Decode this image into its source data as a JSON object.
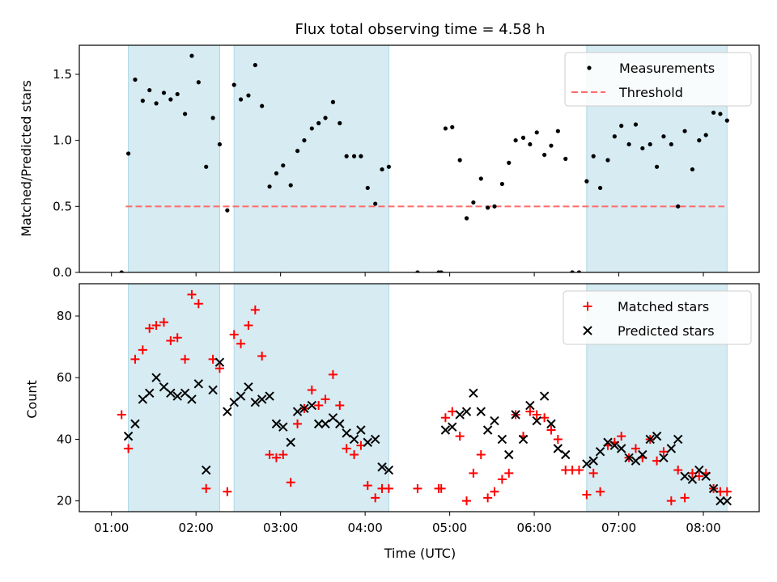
{
  "chart_data": [
    {
      "type": "scatter",
      "title": "Flux total observing time = 4.58 h",
      "xlabel": "",
      "ylabel": "Matched/Predicted stars",
      "ylim": [
        0,
        1.72
      ],
      "xlim": [
        0.62,
        8.66
      ],
      "yticks": [
        0.0,
        0.5,
        1.0,
        1.5
      ],
      "yticklabels": [
        "0.0",
        "0.5",
        "1.0",
        "1.5"
      ],
      "xtick_labels_shown": false,
      "legend": {
        "placement": "top-right",
        "entries": [
          "Measurements",
          "Threshold"
        ]
      },
      "threshold": {
        "name": "Threshold",
        "value": 0.5,
        "x": [
          1.17,
          8.25
        ],
        "color": "#ff6b6b",
        "style": "dashed"
      },
      "series": [
        {
          "name": "Measurements",
          "marker": "dot",
          "color": "#000000",
          "x": [
            1.12,
            1.2,
            1.28,
            1.37,
            1.45,
            1.53,
            1.62,
            1.7,
            1.78,
            1.87,
            1.95,
            2.03,
            2.12,
            2.2,
            2.28,
            2.37,
            2.45,
            2.53,
            2.62,
            2.7,
            2.78,
            2.87,
            2.95,
            3.03,
            3.12,
            3.2,
            3.28,
            3.37,
            3.45,
            3.53,
            3.62,
            3.7,
            3.78,
            3.87,
            3.95,
            4.03,
            4.12,
            4.2,
            4.28,
            4.62,
            4.87,
            4.9,
            4.95,
            5.03,
            5.12,
            5.2,
            5.28,
            5.37,
            5.45,
            5.53,
            5.62,
            5.7,
            5.78,
            5.87,
            5.95,
            6.03,
            6.12,
            6.2,
            6.28,
            6.37,
            6.45,
            6.53,
            6.62,
            6.7,
            6.78,
            6.87,
            6.95,
            7.03,
            7.12,
            7.2,
            7.28,
            7.37,
            7.45,
            7.53,
            7.62,
            7.7,
            7.78,
            7.87,
            7.95,
            8.03,
            8.12,
            8.2,
            8.28
          ],
          "y": [
            0.0,
            0.9,
            1.46,
            1.3,
            1.38,
            1.28,
            1.36,
            1.31,
            1.35,
            1.2,
            1.64,
            1.44,
            0.8,
            1.17,
            0.97,
            0.47,
            1.42,
            1.31,
            1.34,
            1.57,
            1.26,
            0.65,
            0.75,
            0.81,
            0.66,
            0.92,
            1.0,
            1.09,
            1.13,
            1.17,
            1.29,
            1.13,
            0.88,
            0.88,
            0.88,
            0.64,
            0.52,
            0.78,
            0.8,
            0.0,
            0.0,
            0.0,
            1.09,
            1.1,
            0.85,
            0.41,
            0.53,
            0.71,
            0.49,
            0.5,
            0.67,
            0.83,
            1.0,
            1.02,
            0.97,
            1.06,
            0.89,
            0.96,
            1.07,
            0.86,
            0.0,
            0.0,
            0.69,
            0.88,
            0.64,
            0.85,
            1.03,
            1.11,
            0.97,
            1.12,
            0.94,
            0.97,
            0.8,
            1.03,
            0.97,
            0.5,
            1.07,
            0.78,
            1.0,
            1.04,
            1.21,
            1.2,
            1.15
          ]
        }
      ]
    },
    {
      "type": "scatter",
      "title": "",
      "xlabel": "Time (UTC)",
      "ylabel": "Count",
      "ylim": [
        16.5,
        90.5
      ],
      "xlim": [
        0.62,
        8.66
      ],
      "yticks": [
        20,
        40,
        60,
        80
      ],
      "yticklabels": [
        "20",
        "40",
        "60",
        "80"
      ],
      "xticks": [
        1,
        2,
        3,
        4,
        5,
        6,
        7,
        8
      ],
      "xticklabels": [
        "01:00",
        "02:00",
        "03:00",
        "04:00",
        "05:00",
        "06:00",
        "07:00",
        "08:00"
      ],
      "legend": {
        "placement": "top-right",
        "entries": [
          "Matched stars",
          "Predicted stars"
        ]
      },
      "series": [
        {
          "name": "Matched stars",
          "marker": "plus",
          "color": "#ff0000",
          "x": [
            1.12,
            1.2,
            1.28,
            1.37,
            1.45,
            1.53,
            1.62,
            1.7,
            1.78,
            1.87,
            1.95,
            2.03,
            2.12,
            2.2,
            2.28,
            2.37,
            2.45,
            2.53,
            2.62,
            2.7,
            2.78,
            2.87,
            2.95,
            3.03,
            3.12,
            3.2,
            3.28,
            3.37,
            3.45,
            3.53,
            3.62,
            3.7,
            3.78,
            3.87,
            3.95,
            4.03,
            4.12,
            4.2,
            4.28,
            4.62,
            4.87,
            4.9,
            4.95,
            5.03,
            5.12,
            5.2,
            5.28,
            5.37,
            5.45,
            5.53,
            5.62,
            5.7,
            5.78,
            5.87,
            5.95,
            6.03,
            6.12,
            6.2,
            6.28,
            6.37,
            6.45,
            6.53,
            6.62,
            6.7,
            6.78,
            6.87,
            6.95,
            7.03,
            7.12,
            7.2,
            7.28,
            7.37,
            7.45,
            7.53,
            7.62,
            7.7,
            7.78,
            7.87,
            7.95,
            8.03,
            8.12,
            8.2,
            8.28
          ],
          "y": [
            48,
            37,
            66,
            69,
            76,
            77,
            78,
            72,
            73,
            66,
            87,
            84,
            24,
            66,
            63,
            23,
            74,
            71,
            77,
            82,
            67,
            35,
            34,
            35,
            26,
            45,
            50,
            56,
            51,
            53,
            61,
            51,
            37,
            35,
            38,
            25,
            21,
            24,
            24,
            24,
            24,
            24,
            47,
            49,
            41,
            20,
            29,
            35,
            21,
            23,
            27,
            29,
            48,
            41,
            49,
            48,
            47,
            43,
            40,
            30,
            30,
            30,
            22,
            29,
            23,
            38,
            39,
            41,
            34,
            37,
            34,
            40,
            33,
            36,
            20,
            30,
            21,
            29,
            28,
            29,
            24,
            23,
            23
          ]
        },
        {
          "name": "Predicted stars",
          "marker": "x",
          "color": "#000000",
          "x": [
            1.2,
            1.28,
            1.37,
            1.45,
            1.53,
            1.62,
            1.7,
            1.78,
            1.87,
            1.95,
            2.03,
            2.12,
            2.2,
            2.28,
            2.37,
            2.45,
            2.53,
            2.62,
            2.7,
            2.78,
            2.87,
            2.95,
            3.03,
            3.12,
            3.2,
            3.28,
            3.37,
            3.45,
            3.53,
            3.62,
            3.7,
            3.78,
            3.87,
            3.95,
            4.03,
            4.12,
            4.2,
            4.28,
            4.95,
            5.03,
            5.12,
            5.2,
            5.28,
            5.37,
            5.45,
            5.53,
            5.62,
            5.7,
            5.78,
            5.87,
            5.95,
            6.03,
            6.12,
            6.2,
            6.28,
            6.37,
            6.62,
            6.7,
            6.78,
            6.87,
            6.95,
            7.03,
            7.12,
            7.2,
            7.28,
            7.37,
            7.45,
            7.53,
            7.62,
            7.7,
            7.78,
            7.87,
            7.95,
            8.03,
            8.12,
            8.2,
            8.28
          ],
          "y": [
            41,
            45,
            53,
            55,
            60,
            57,
            55,
            54,
            55,
            53,
            58,
            30,
            56,
            65,
            49,
            52,
            54,
            57,
            52,
            53,
            54,
            45,
            44,
            39,
            49,
            50,
            51,
            45,
            45,
            47,
            45,
            42,
            40,
            43,
            39,
            40,
            31,
            30,
            43,
            44,
            48,
            49,
            55,
            49,
            43,
            46,
            40,
            35,
            48,
            40,
            51,
            46,
            54,
            45,
            37,
            35,
            32,
            33,
            36,
            39,
            38,
            37,
            34,
            33,
            35,
            40,
            41,
            34,
            37,
            40,
            28,
            27,
            30,
            28,
            24,
            20,
            20
          ]
        }
      ]
    }
  ],
  "shaded_intervals": [
    [
      1.2,
      2.28
    ],
    [
      2.45,
      4.28
    ],
    [
      6.62,
      8.28
    ]
  ],
  "shade_color": "#add8e6",
  "marker_colors": {
    "measurements": "#000000",
    "matched": "#ff0000",
    "predicted": "#000000",
    "threshold": "#ff6b6b"
  }
}
